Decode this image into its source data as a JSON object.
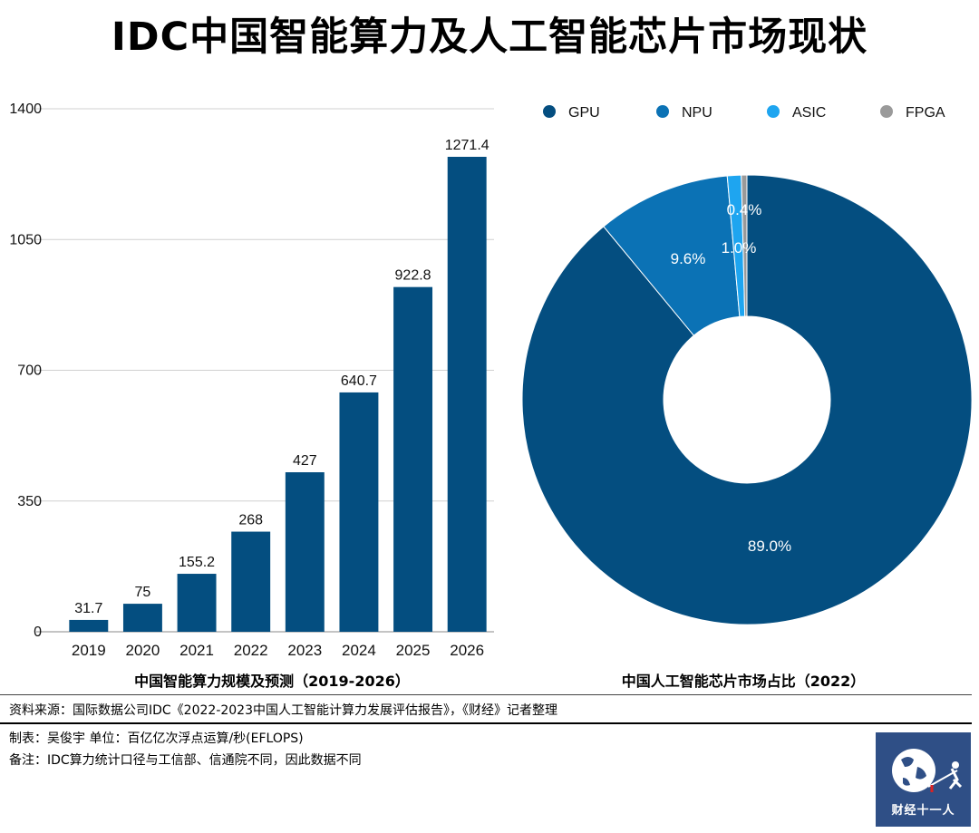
{
  "title": "IDC中国智能算力及人工智能芯片市场现状",
  "chart_data": [
    {
      "type": "bar",
      "xlabel": "中国智能算力规模及预测（2019-2026）",
      "ylabel": "",
      "categories": [
        "2019",
        "2020",
        "2021",
        "2022",
        "2023",
        "2024",
        "2025",
        "2026"
      ],
      "values": [
        31.7,
        75,
        155.2,
        268,
        427,
        640.7,
        922.8,
        1271.4
      ],
      "data_labels": [
        "31.7",
        "75",
        "155.2",
        "268",
        "427",
        "640.7",
        "922.8",
        "1271.4"
      ],
      "yticks": [
        "0",
        "350",
        "700",
        "1050",
        "1400"
      ],
      "ylim": [
        0,
        1400
      ],
      "grid": true,
      "color": "#044e80"
    },
    {
      "type": "pie",
      "xlabel": "中国人工智能芯片市场占比（2022）",
      "donut": true,
      "legend_position": "top",
      "slices": [
        {
          "label": "GPU",
          "value": 89.0,
          "display": "89.0%",
          "color": "#044e80"
        },
        {
          "label": "NPU",
          "value": 9.6,
          "display": "9.6%",
          "color": "#0b72b5"
        },
        {
          "label": "ASIC",
          "value": 1.0,
          "display": "1.0%",
          "color": "#1ea5f0"
        },
        {
          "label": "FPGA",
          "value": 0.4,
          "display": "0.4%",
          "color": "#9a9a9a"
        }
      ]
    }
  ],
  "footer": {
    "source": "资料来源：国际数据公司IDC《2022-2023中国人工智能计算力发展评估报告》，《财经》记者整理",
    "maker": "制表：吴俊宇    单位：百亿亿次浮点运算/秒(EFLOPS)",
    "note": "备注：IDC算力统计口径与工信部、信通院不同，因此数据不同"
  },
  "logo": {
    "text": "财经十一人",
    "icon": "globe-fencer-icon"
  }
}
